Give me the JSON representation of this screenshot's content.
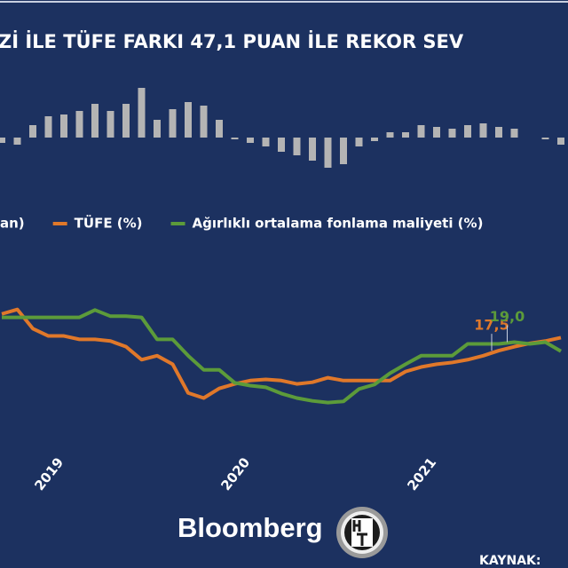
{
  "chart_data": {
    "type": "line",
    "title": "Zİ İLE TÜFE FARKI 47,1 PUAN İLE REKOR SEV",
    "brand": "Bloomberg",
    "source": "KAYNAK:",
    "categories": [
      null,
      null,
      null,
      "2019",
      null,
      null,
      null,
      null,
      null,
      null,
      null,
      null,
      null,
      null,
      null,
      "2020",
      null,
      null,
      null,
      null,
      null,
      null,
      null,
      null,
      null,
      null,
      null,
      "2021",
      null,
      null,
      null,
      null,
      null,
      null,
      null,
      null,
      null
    ],
    "ylim": [
      1,
      35.6
    ],
    "y2lim": [
      -11.25,
      16.25
    ],
    "series": [
      {
        "name": "an)",
        "type": "bar",
        "axis": "y2",
        "color": "#b4b4b4",
        "values": [
          -1.5,
          -2,
          3.5,
          6,
          6.5,
          7.5,
          9.5,
          7.5,
          9.5,
          14,
          5,
          8,
          10,
          9,
          5,
          -0.5,
          -1.5,
          -2.5,
          -4,
          -5,
          -6.5,
          -8.5,
          -7.5,
          -2.5,
          -1,
          1.5,
          1.5,
          3.5,
          3,
          2.5,
          3.5,
          4,
          3,
          2.5,
          0,
          -0.5,
          -2
        ]
      },
      {
        "name": "TÜFE (%)",
        "color": "#e0782a",
        "values": [
          24.0,
          24.8,
          21.4,
          20.1,
          20.1,
          19.5,
          19.5,
          19.2,
          18.2,
          15.9,
          16.6,
          15.1,
          10.0,
          9.1,
          10.8,
          11.6,
          12.2,
          12.4,
          12.2,
          11.6,
          11.9,
          12.7,
          12.2,
          12.2,
          12.2,
          12.2,
          13.8,
          14.6,
          15.1,
          15.4,
          15.9,
          16.6,
          17.5,
          18.2,
          18.8,
          19.2,
          19.8
        ],
        "value_labels": [
          null,
          null,
          null,
          null,
          null,
          null,
          null,
          null,
          null,
          null,
          null,
          null,
          null,
          null,
          null,
          null,
          null,
          null,
          null,
          null,
          null,
          null,
          null,
          null,
          null,
          null,
          null,
          null,
          null,
          null,
          null,
          null,
          "17,5",
          null,
          null,
          null,
          null
        ]
      },
      {
        "name": "Ağırlıklı ortalama fonlama maliyeti (%)",
        "color": "#5c9b3a",
        "values": [
          23.4,
          23.4,
          23.4,
          23.4,
          23.4,
          23.4,
          24.7,
          23.6,
          23.6,
          23.4,
          19.5,
          19.5,
          16.6,
          14.1,
          14.1,
          11.8,
          11.3,
          11.0,
          9.9,
          9.1,
          8.6,
          8.3,
          8.5,
          10.7,
          11.5,
          13.5,
          15.1,
          16.6,
          16.6,
          16.6,
          18.7,
          18.7,
          18.7,
          19.0,
          18.7,
          19.0,
          17.4
        ],
        "value_labels": [
          null,
          null,
          null,
          null,
          null,
          null,
          null,
          null,
          null,
          null,
          null,
          null,
          null,
          null,
          null,
          null,
          null,
          null,
          null,
          null,
          null,
          null,
          null,
          null,
          null,
          null,
          null,
          null,
          null,
          null,
          null,
          null,
          null,
          "19,0",
          null,
          null,
          null
        ]
      }
    ]
  }
}
